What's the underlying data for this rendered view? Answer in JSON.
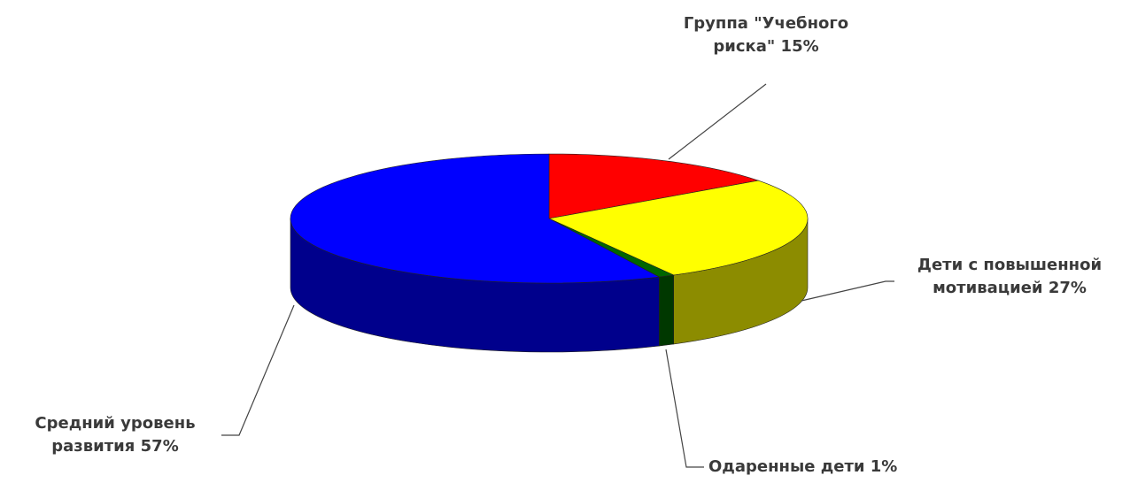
{
  "chart_data": {
    "type": "pie3d",
    "categories": [
      "Группа \"Учебного риска\"",
      "Дети с повышенной мотивацией",
      "Одаренные дети",
      "Средний уровень развития"
    ],
    "values": [
      15,
      27,
      1,
      57
    ],
    "value_labels": [
      "15%",
      "27%",
      "1%",
      "57%"
    ],
    "colors": [
      "#ff0000",
      "#ffff00",
      "#006600",
      "#0000ff"
    ]
  }
}
